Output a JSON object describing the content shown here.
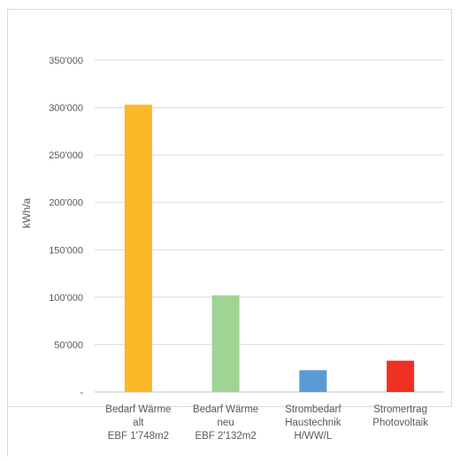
{
  "chart_data": {
    "type": "bar",
    "title": "",
    "xlabel": "",
    "ylabel": "kWh/a",
    "ylim": [
      0,
      350000
    ],
    "grid": true,
    "legend": "none",
    "y_ticks": [
      "-",
      "50'000",
      "100'000",
      "150'000",
      "200'000",
      "250'000",
      "300'000",
      "350'000"
    ],
    "y_tick_values": [
      0,
      50000,
      100000,
      150000,
      200000,
      250000,
      300000,
      350000
    ],
    "categories": [
      [
        "Bedarf Wärme",
        "alt",
        "EBF 1'748m2"
      ],
      [
        "Bedarf Wärme",
        "neu",
        "EBF 2'132m2"
      ],
      [
        "Strombedarf",
        "Haustechnik",
        "H/WW/L"
      ],
      [
        "Stromertrag",
        "Photovoltaik"
      ]
    ],
    "values": [
      303000,
      102000,
      23000,
      33000
    ],
    "colors": [
      "#FBB829",
      "#9FD494",
      "#5B9BD5",
      "#EE3124"
    ]
  }
}
